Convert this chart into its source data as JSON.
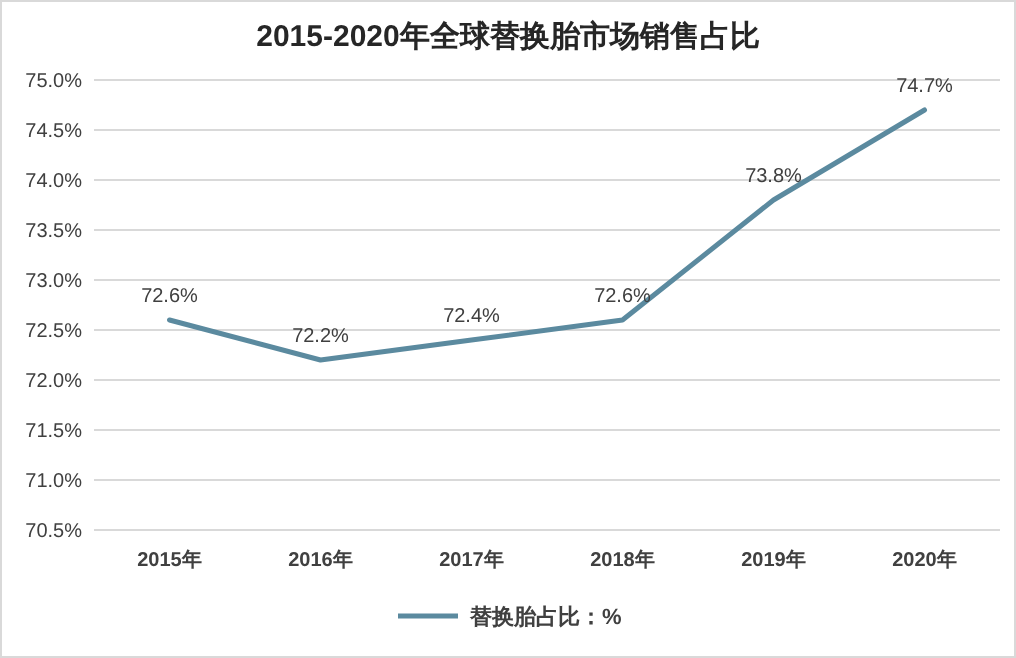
{
  "chart_data": {
    "type": "line",
    "title": "2015-2020年全球替换胎市场销售占比",
    "categories": [
      "2015年",
      "2016年",
      "2017年",
      "2018年",
      "2019年",
      "2020年"
    ],
    "series": [
      {
        "name": "替换胎占比：%",
        "color": "#5b8a9f",
        "values": [
          72.6,
          72.2,
          72.4,
          72.6,
          73.8,
          74.7
        ],
        "value_labels": [
          "72.6%",
          "72.2%",
          "72.4%",
          "72.6%",
          "73.8%",
          "74.7%"
        ]
      }
    ],
    "ylim": [
      70.5,
      75.0
    ],
    "yticks": [
      {
        "value": 70.5,
        "label": "70.5%"
      },
      {
        "value": 71.0,
        "label": "71.0%"
      },
      {
        "value": 71.5,
        "label": "71.5%"
      },
      {
        "value": 72.0,
        "label": "72.0%"
      },
      {
        "value": 72.5,
        "label": "72.5%"
      },
      {
        "value": 73.0,
        "label": "73.0%"
      },
      {
        "value": 73.5,
        "label": "73.5%"
      },
      {
        "value": 74.0,
        "label": "74.0%"
      },
      {
        "value": 74.5,
        "label": "74.5%"
      },
      {
        "value": 75.0,
        "label": "75.0%"
      }
    ],
    "grid": "y",
    "legend": "bottom"
  }
}
